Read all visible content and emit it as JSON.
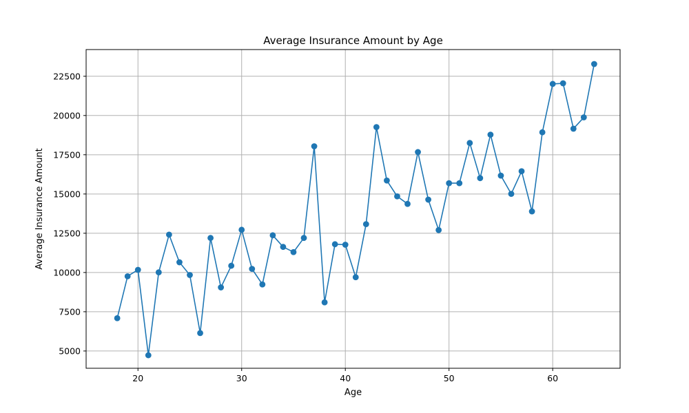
{
  "chart_data": {
    "type": "line",
    "title": "Average Insurance Amount by Age",
    "xlabel": "Age",
    "ylabel": "Average Insurance Amount",
    "xlim": [
      15,
      66.5
    ],
    "ylim": [
      3900,
      24200
    ],
    "xticks": [
      20,
      30,
      40,
      50,
      60
    ],
    "yticks": [
      5000,
      7500,
      10000,
      12500,
      15000,
      17500,
      20000,
      22500
    ],
    "grid": true,
    "color": "#1f77b4",
    "marker": "circle",
    "series": [
      {
        "x": [
          18,
          19,
          20,
          21,
          22,
          23,
          24,
          25,
          26,
          27,
          28,
          29,
          30,
          31,
          32,
          33,
          34,
          35,
          36,
          37,
          38,
          39,
          40,
          41,
          42,
          43,
          44,
          45,
          46,
          47,
          48,
          49,
          50,
          51,
          52,
          53,
          54,
          55,
          56,
          57,
          58,
          59,
          60,
          61,
          62,
          63,
          64
        ],
        "y": [
          7090,
          9760,
          10170,
          4730,
          10010,
          12410,
          10650,
          9840,
          6140,
          12200,
          9050,
          10430,
          12720,
          10230,
          9240,
          12370,
          11630,
          11300,
          12200,
          18040,
          8100,
          11800,
          11770,
          9700,
          13080,
          19260,
          15860,
          14850,
          14370,
          17670,
          14640,
          12700,
          15690,
          15690,
          18250,
          16010,
          18780,
          16170,
          15010,
          16450,
          13890,
          18930,
          22010,
          22050,
          19160,
          19880,
          23280
        ]
      }
    ]
  }
}
